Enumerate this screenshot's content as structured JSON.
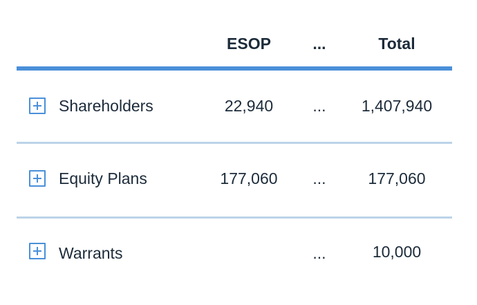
{
  "header": {
    "esop": "ESOP",
    "more": "...",
    "total": "Total"
  },
  "rows": [
    {
      "label": "Shareholders",
      "esop": "22,940",
      "more": "...",
      "total": "1,407,940"
    },
    {
      "label": "Equity Plans",
      "esop": "177,060",
      "more": "...",
      "total": "177,060"
    },
    {
      "label": "Warrants",
      "esop": "",
      "more": "...",
      "total": "10,000"
    }
  ],
  "colors": {
    "accent": "#4a90d9",
    "divider": "#bcd3e8",
    "text": "#1c2b3a"
  },
  "icons": {
    "expand": "plus-square-icon"
  }
}
